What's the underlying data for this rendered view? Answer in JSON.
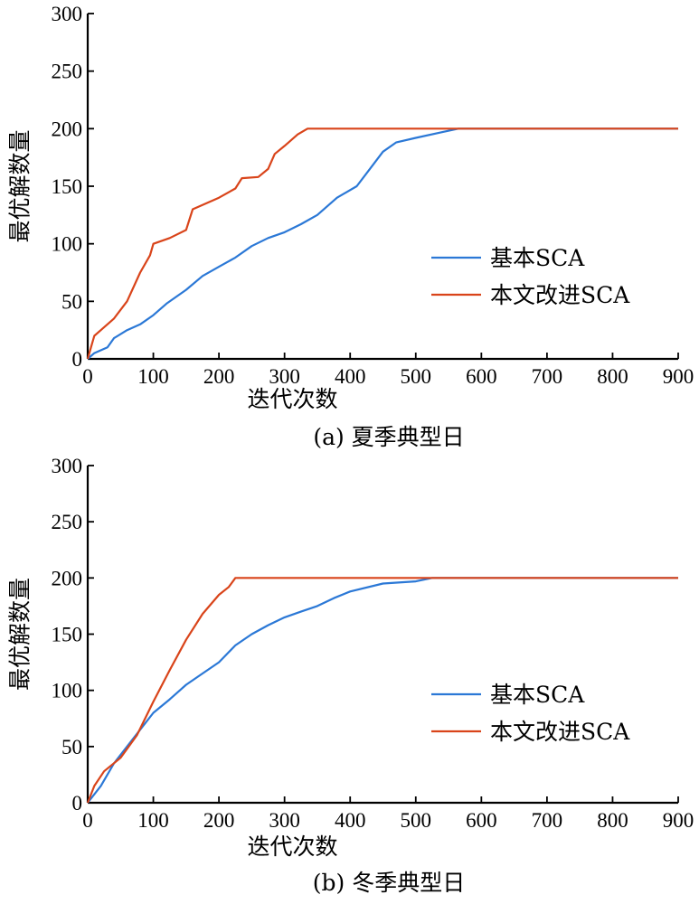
{
  "colors": {
    "basic": "#2b78d6",
    "improved": "#d9441a",
    "axis": "#000000"
  },
  "chart_data": [
    {
      "type": "line",
      "caption": "(a) 夏季典型日",
      "xlabel": "迭代次数",
      "ylabel": "最优解数量",
      "xlim": [
        0,
        900
      ],
      "ylim": [
        0,
        300
      ],
      "xticks": [
        "0",
        "100",
        "200",
        "300",
        "400",
        "500",
        "600",
        "700",
        "800",
        "900"
      ],
      "yticks": [
        "0",
        "50",
        "100",
        "150",
        "200",
        "250",
        "300"
      ],
      "legend_position": "right-middle",
      "series": [
        {
          "name": "基本SCA",
          "color": "#2b78d6",
          "x": [
            0,
            10,
            30,
            40,
            60,
            80,
            100,
            120,
            150,
            175,
            200,
            225,
            250,
            275,
            300,
            325,
            350,
            380,
            410,
            430,
            450,
            470,
            500,
            540,
            565,
            600,
            700,
            800,
            900
          ],
          "y": [
            0,
            5,
            10,
            18,
            25,
            30,
            38,
            48,
            60,
            72,
            80,
            88,
            98,
            105,
            110,
            117,
            125,
            140,
            150,
            165,
            180,
            188,
            192,
            197,
            200,
            200,
            200,
            200,
            200
          ]
        },
        {
          "name": "本文改进SCA",
          "color": "#d9441a",
          "x": [
            0,
            5,
            10,
            20,
            40,
            60,
            80,
            95,
            100,
            125,
            150,
            160,
            200,
            225,
            235,
            260,
            275,
            285,
            300,
            320,
            335,
            400,
            500,
            600,
            700,
            800,
            900
          ],
          "y": [
            0,
            10,
            20,
            25,
            35,
            50,
            75,
            90,
            100,
            105,
            112,
            130,
            140,
            148,
            157,
            158,
            165,
            178,
            185,
            195,
            200,
            200,
            200,
            200,
            200,
            200,
            200
          ]
        }
      ]
    },
    {
      "type": "line",
      "caption": "(b) 冬季典型日",
      "xlabel": "迭代次数",
      "ylabel": "最优解数量",
      "xlim": [
        0,
        900
      ],
      "ylim": [
        0,
        300
      ],
      "xticks": [
        "0",
        "100",
        "200",
        "300",
        "400",
        "500",
        "600",
        "700",
        "800",
        "900"
      ],
      "yticks": [
        "0",
        "50",
        "100",
        "150",
        "200",
        "250",
        "300"
      ],
      "legend_position": "right-middle",
      "series": [
        {
          "name": "基本SCA",
          "color": "#2b78d6",
          "x": [
            0,
            20,
            40,
            60,
            80,
            100,
            125,
            150,
            175,
            200,
            225,
            250,
            275,
            300,
            325,
            350,
            375,
            400,
            450,
            500,
            525,
            600,
            700,
            800,
            900
          ],
          "y": [
            0,
            15,
            35,
            50,
            65,
            80,
            92,
            105,
            115,
            125,
            140,
            150,
            158,
            165,
            170,
            175,
            182,
            188,
            195,
            197,
            200,
            200,
            200,
            200,
            200
          ]
        },
        {
          "name": "本文改进SCA",
          "color": "#d9441a",
          "x": [
            0,
            10,
            25,
            50,
            75,
            100,
            125,
            150,
            175,
            200,
            215,
            225,
            300,
            400,
            500,
            600,
            700,
            800,
            900
          ],
          "y": [
            0,
            15,
            28,
            40,
            60,
            90,
            118,
            145,
            168,
            185,
            192,
            200,
            200,
            200,
            200,
            200,
            200,
            200,
            200
          ]
        }
      ]
    }
  ]
}
